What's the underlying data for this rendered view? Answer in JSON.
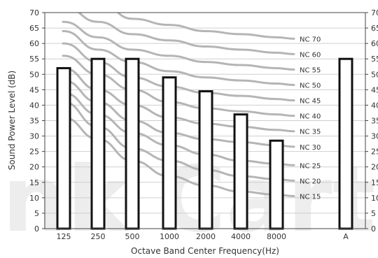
{
  "chart_data": {
    "type": "bar",
    "categories": [
      "125",
      "250",
      "500",
      "1000",
      "2000",
      "4000",
      "8000",
      "A"
    ],
    "values": [
      52,
      55,
      55,
      49,
      44.5,
      37,
      28.5,
      55
    ],
    "xlabel": "Octave Band Center Frequency(Hz)",
    "ylabel": "Sound Power Level (dB)",
    "ylim": [
      0,
      70
    ],
    "yticks": [
      0,
      5,
      10,
      15,
      20,
      25,
      30,
      35,
      40,
      45,
      50,
      55,
      60,
      65,
      70
    ],
    "grid": true,
    "nc_curves": [
      {
        "name": "NC 15",
        "values": [
          36,
          29,
          22,
          17,
          14,
          12,
          11
        ]
      },
      {
        "name": "NC 20",
        "values": [
          41,
          33,
          26,
          22,
          19,
          17,
          16
        ]
      },
      {
        "name": "NC 25",
        "values": [
          44,
          37,
          31,
          27,
          24,
          22,
          21
        ]
      },
      {
        "name": "NC 30",
        "values": [
          48,
          41,
          35,
          31,
          29,
          28,
          27
        ]
      },
      {
        "name": "NC 35",
        "values": [
          52,
          45,
          40,
          36,
          34,
          33,
          32
        ]
      },
      {
        "name": "NC 40",
        "values": [
          56,
          50,
          45,
          41,
          39,
          38,
          37
        ]
      },
      {
        "name": "NC 45",
        "values": [
          60,
          54,
          49,
          46,
          44,
          43,
          42
        ]
      },
      {
        "name": "NC 50",
        "values": [
          64,
          58,
          54,
          51,
          49,
          48,
          47
        ]
      },
      {
        "name": "NC 55",
        "values": [
          67,
          62,
          58,
          56,
          54,
          53,
          52
        ]
      },
      {
        "name": "NC 60",
        "values": [
          72,
          67,
          63,
          61,
          59,
          58,
          57
        ]
      },
      {
        "name": "NC 70",
        "values": [
          77,
          74,
          68,
          66,
          64,
          63,
          62
        ]
      }
    ],
    "colors": {
      "bar_fill": "#ffffff",
      "bar_stroke": "#111111",
      "curve": "#b5b5b5",
      "grid": "#cfcfcf",
      "axis": "#444444"
    },
    "watermark": "nk Cart"
  }
}
